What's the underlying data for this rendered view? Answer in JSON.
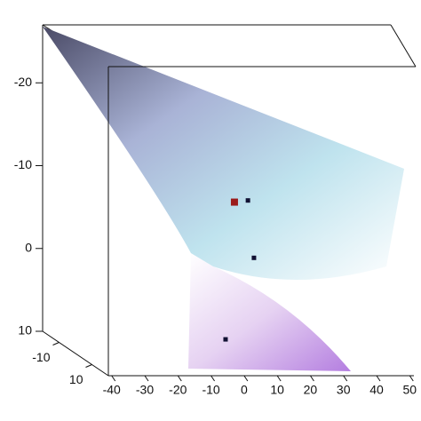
{
  "chart_data": {
    "type": "surface3d",
    "xlim": [
      -41,
      51
    ],
    "xticks": [
      -40,
      -30,
      -20,
      -10,
      0,
      10,
      20,
      30,
      40,
      50
    ],
    "ylim": [
      -20,
      20
    ],
    "yticks": [
      -10,
      10
    ],
    "zlim": [
      -27,
      10
    ],
    "zticks": [
      -20,
      -10,
      0,
      10
    ],
    "series": [
      {
        "color": "#9b1b1b",
        "x": [
          3.8
        ],
        "y": [
          0
        ],
        "z": [
          -8.2
        ]
      },
      {
        "color": "#111133",
        "x": [
          7.6,
          9.3,
          1.3
        ],
        "y": [
          0,
          0,
          0
        ],
        "z": [
          -8.4,
          -1.5,
          8.3
        ]
      }
    ]
  }
}
